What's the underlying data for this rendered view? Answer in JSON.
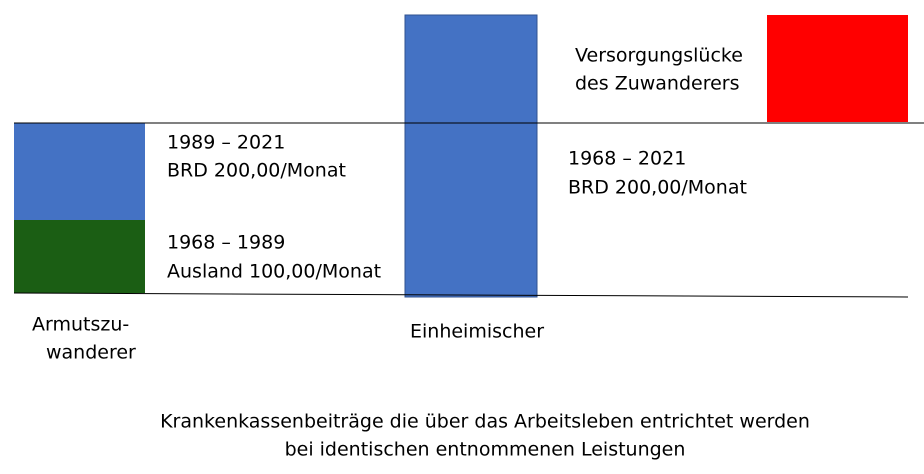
{
  "migrant": {
    "period_recent": "1989 – 2021",
    "amount_recent": "BRD 200,00/Monat",
    "period_early": "1968 – 1989",
    "amount_early": "Ausland 100,00/Monat",
    "label_line1": "Armutszu-",
    "label_line2": "wanderer"
  },
  "native": {
    "label": "Einheimischer",
    "period": "1968 – 2021",
    "amount": "BRD 200,00/Monat"
  },
  "gap": {
    "line1": "Versorgungslücke",
    "line2": "des Zuwanderers"
  },
  "caption": {
    "line1": "Krankenkassenbeiträge die über das Arbeitsleben entrichtet werden",
    "line2": "bei identischen entnommenen Leistungen"
  }
}
